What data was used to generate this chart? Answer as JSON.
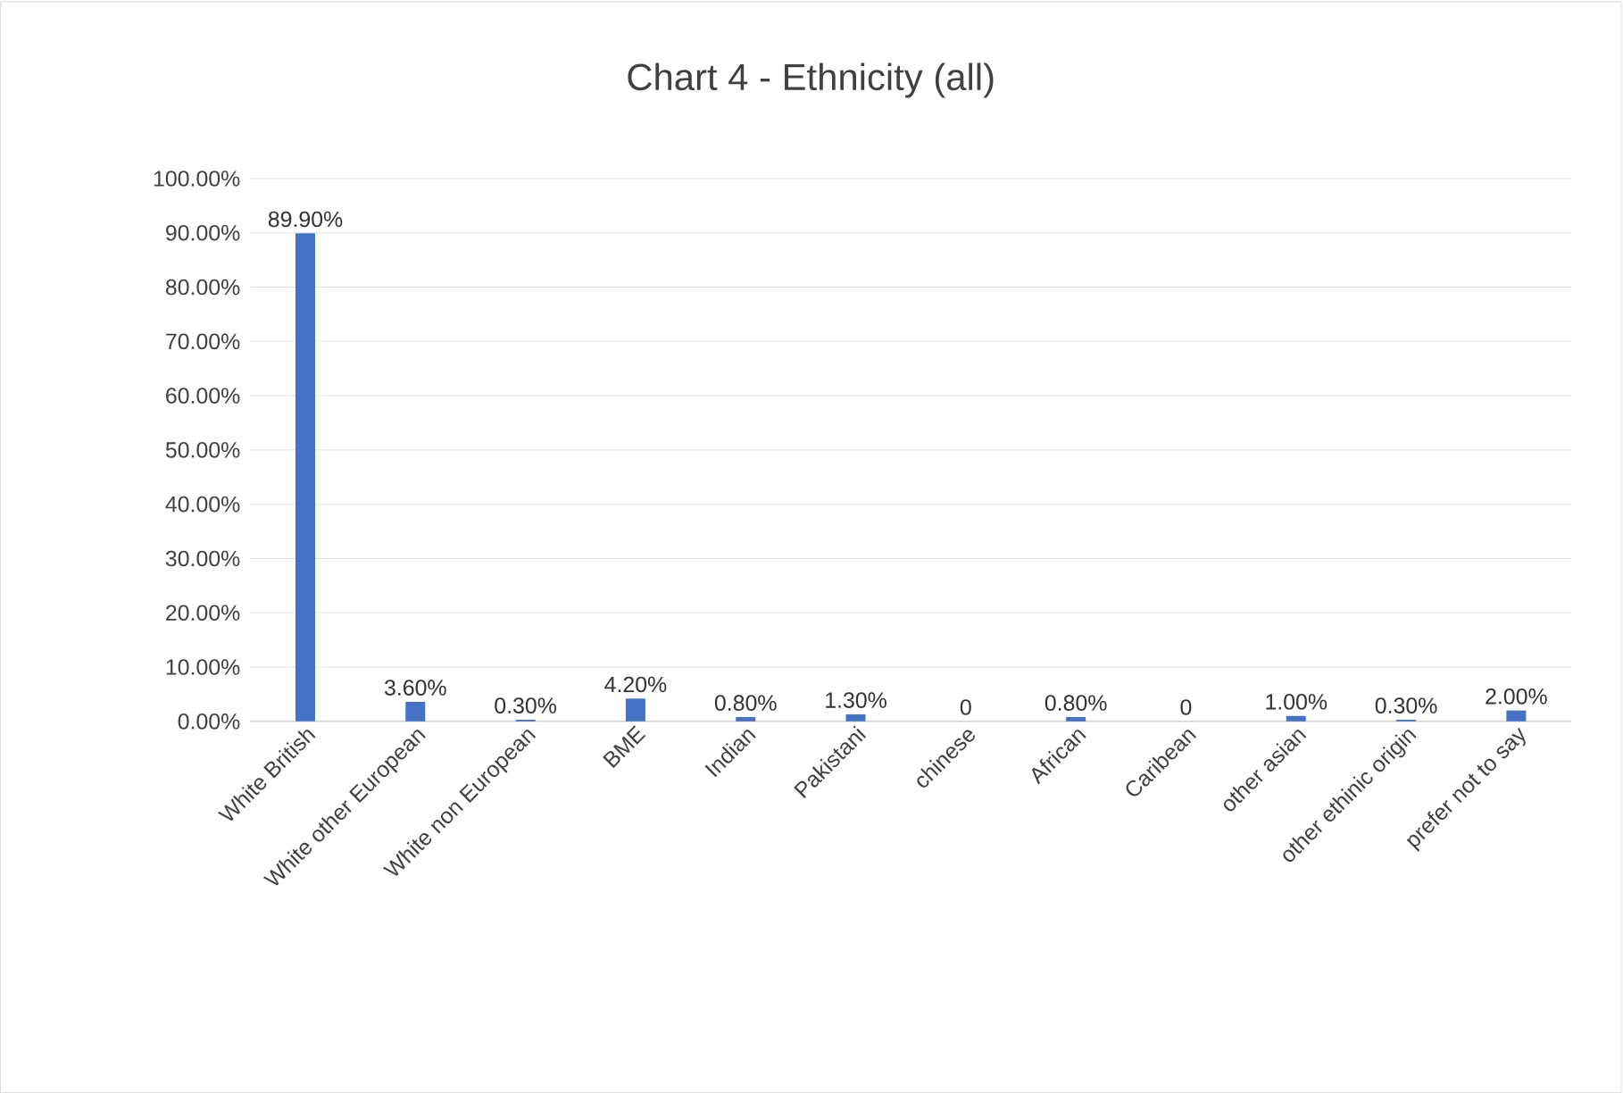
{
  "chart_data": {
    "type": "bar",
    "title": "Chart 4 - Ethnicity (all)",
    "categories": [
      "White British",
      "White other European",
      "White non European",
      "BME",
      "Indian",
      "Pakistani",
      "chinese",
      "African",
      "Caribean",
      "other asian",
      "other ethinic origin",
      "prefer not to say"
    ],
    "values": [
      89.9,
      3.6,
      0.3,
      4.2,
      0.8,
      1.3,
      0,
      0.8,
      0,
      1.0,
      0.3,
      2.0
    ],
    "value_labels": [
      "89.90%",
      "3.60%",
      "0.30%",
      "4.20%",
      "0.80%",
      "1.30%",
      "0",
      "0.80%",
      "0",
      "1.00%",
      "0.30%",
      "2.00%"
    ],
    "color": "#4472c4",
    "ylim": [
      0,
      100
    ],
    "yticks": [
      {
        "value": 0,
        "label": "0.00%"
      },
      {
        "value": 10,
        "label": "10.00%"
      },
      {
        "value": 20,
        "label": "20.00%"
      },
      {
        "value": 30,
        "label": "30.00%"
      },
      {
        "value": 40,
        "label": "40.00%"
      },
      {
        "value": 50,
        "label": "50.00%"
      },
      {
        "value": 60,
        "label": "60.00%"
      },
      {
        "value": 70,
        "label": "70.00%"
      },
      {
        "value": 80,
        "label": "80.00%"
      },
      {
        "value": 90,
        "label": "90.00%"
      },
      {
        "value": 100,
        "label": "100.00%"
      }
    ],
    "grid": "y"
  }
}
